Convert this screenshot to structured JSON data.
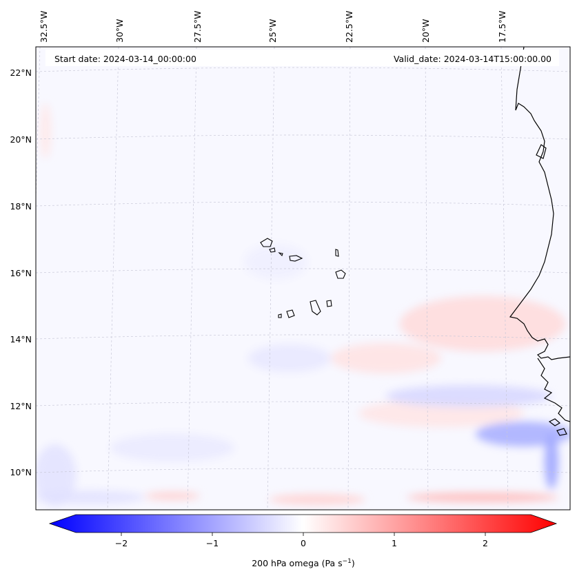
{
  "map": {
    "header": {
      "start_date": "Start date: 2024-03-14_00:00:00",
      "valid_date": "Valid_date: 2024-03-14T15:00:00.00"
    },
    "lon_labels": [
      "32.5°W",
      "30°W",
      "27.5°W",
      "25°W",
      "22.5°W",
      "20°W",
      "17.5°W"
    ],
    "lat_labels": [
      "22°N",
      "20°N",
      "18°N",
      "16°N",
      "14°N",
      "12°N",
      "10°N"
    ],
    "colorbar": {
      "ticks": [
        "−2",
        "−1",
        "0",
        "1",
        "2"
      ],
      "tick_values": [
        -2,
        -1,
        0,
        1,
        2
      ],
      "range": [
        -2.5,
        2.5
      ],
      "label": "200 hPa omega (Pa s",
      "label_exp": "−1",
      "label_tail": ")",
      "color_neg": "#0000ff",
      "color_mid": "#ffffff",
      "color_pos": "#ff0000"
    },
    "colors": {
      "ocean": "#f8f8ff",
      "coast": "#000000",
      "grid": "#c8c8d8"
    }
  }
}
